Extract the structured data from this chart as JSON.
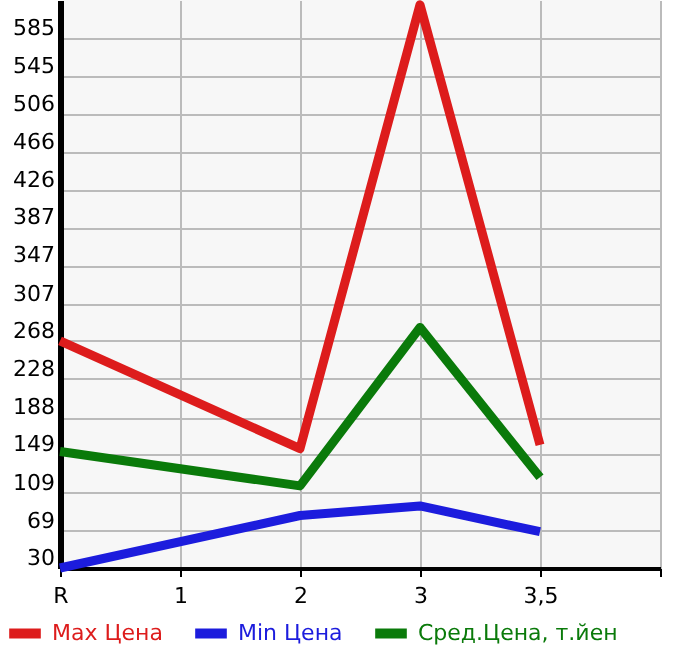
{
  "chart_data": {
    "type": "line",
    "categories": [
      "R",
      "1",
      "2",
      "3",
      "3,5",
      null
    ],
    "series": [
      {
        "name": "Max Цена",
        "color": "#dd1c1c",
        "values": [
          268,
          null,
          155,
          620,
          159,
          null
        ]
      },
      {
        "name": "Min Цена",
        "color": "#1c1cdd",
        "values": [
          30,
          null,
          85,
          95,
          68,
          null
        ]
      },
      {
        "name": "Сред.Цена, т.йен",
        "color": "#0a7a0a",
        "values": [
          152,
          null,
          116,
          282,
          125,
          null
        ]
      }
    ],
    "ylim": [
      30,
      625
    ],
    "yticks": [
      30,
      69,
      109,
      149,
      188,
      228,
      268,
      307,
      347,
      387,
      426,
      466,
      506,
      545,
      585
    ],
    "grid": true,
    "legend": "bottom",
    "marker": "none",
    "line_style": "solid"
  }
}
